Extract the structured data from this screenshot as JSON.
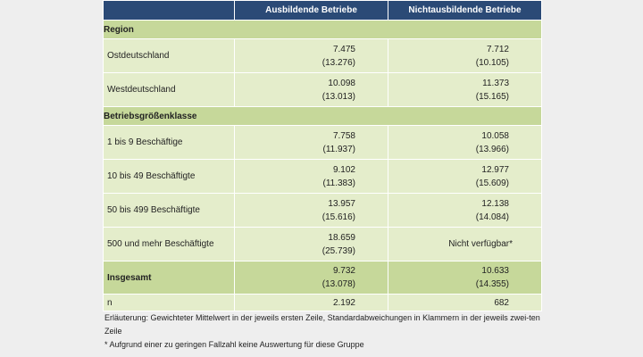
{
  "header": {
    "col1": "",
    "col2": "Ausbildende Betriebe",
    "col3": "Nichtausbildende Betriebe"
  },
  "sections": [
    {
      "title": "Region",
      "rows": [
        {
          "label": "Ostdeutschland",
          "a_mean": "7.475",
          "a_sd": "(13.276)",
          "b_mean": "7.712",
          "b_sd": "(10.105)"
        },
        {
          "label": "Westdeutschland",
          "a_mean": "10.098",
          "a_sd": "(13.013)",
          "b_mean": "11.373",
          "b_sd": "(15.165)"
        }
      ]
    },
    {
      "title": "Betriebsgrößenklasse",
      "rows": [
        {
          "label": "1 bis 9 Beschäftige",
          "a_mean": "7.758",
          "a_sd": "(11.937)",
          "b_mean": "10.058",
          "b_sd": "(13.966)"
        },
        {
          "label": "10 bis 49 Beschäftigte",
          "a_mean": "9.102",
          "a_sd": "(11.383)",
          "b_mean": "12.977",
          "b_sd": "(15.609)"
        },
        {
          "label": "50 bis 499 Beschäftigte",
          "a_mean": "13.957",
          "a_sd": "(15.616)",
          "b_mean": "12.138",
          "b_sd": "(14.084)"
        },
        {
          "label": "500 und mehr Beschäftigte",
          "a_mean": "18.659",
          "a_sd": "(25.739)",
          "b_text": "Nicht verfügbar*"
        }
      ]
    }
  ],
  "total": {
    "label": "Insgesamt",
    "a_mean": "9.732",
    "a_sd": "(13.078)",
    "b_mean": "10.633",
    "b_sd": "(14.355)"
  },
  "n_row": {
    "label": "n",
    "a": "2.192",
    "b": "682"
  },
  "notes": {
    "line1": "Erläuterung: Gewichteter Mittelwert in der jeweils ersten Zeile, Standardabweichungen in Klammern in der jeweils zwei-ten Zeile",
    "line2": "* Aufgrund einer zu geringen Fallzahl keine Auswertung für diese Gruppe"
  },
  "colors": {
    "header_bg": "#2b4a76",
    "section_bg": "#c6d89a",
    "row_bg": "#e4edcb",
    "page_bg": "#eeeeee"
  }
}
